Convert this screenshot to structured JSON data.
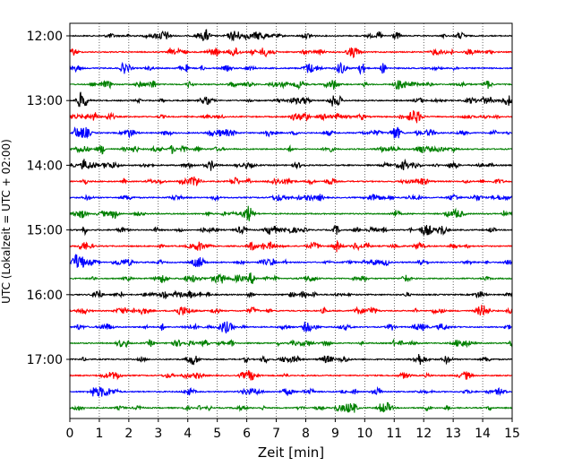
{
  "chart_data": {
    "type": "line",
    "title": "",
    "xlabel": "Zeit  [min]",
    "ylabel": "UTC (Lokalzeit = UTC + 02:00)",
    "xlim": [
      0,
      15
    ],
    "x_ticks": [
      "0",
      "1",
      "2",
      "3",
      "4",
      "5",
      "6",
      "7",
      "8",
      "9",
      "10",
      "11",
      "12",
      "13",
      "14",
      "15"
    ],
    "y_tick_labels": [
      "12:00",
      "13:00",
      "14:00",
      "15:00",
      "16:00",
      "17:00"
    ],
    "grid": "vertical dotted",
    "trace_interval_minutes": 15,
    "start_time": "12:00",
    "traces": [
      {
        "start": "12:00",
        "color": "#000000"
      },
      {
        "start": "12:15",
        "color": "#ff0000"
      },
      {
        "start": "12:30",
        "color": "#0000ff"
      },
      {
        "start": "12:45",
        "color": "#008000"
      },
      {
        "start": "13:00",
        "color": "#000000"
      },
      {
        "start": "13:15",
        "color": "#ff0000"
      },
      {
        "start": "13:30",
        "color": "#0000ff"
      },
      {
        "start": "13:45",
        "color": "#008000"
      },
      {
        "start": "14:00",
        "color": "#000000"
      },
      {
        "start": "14:15",
        "color": "#ff0000"
      },
      {
        "start": "14:30",
        "color": "#0000ff"
      },
      {
        "start": "14:45",
        "color": "#008000"
      },
      {
        "start": "15:00",
        "color": "#000000"
      },
      {
        "start": "15:15",
        "color": "#ff0000"
      },
      {
        "start": "15:30",
        "color": "#0000ff"
      },
      {
        "start": "15:45",
        "color": "#008000"
      },
      {
        "start": "16:00",
        "color": "#000000"
      },
      {
        "start": "16:15",
        "color": "#ff0000"
      },
      {
        "start": "16:30",
        "color": "#0000ff"
      },
      {
        "start": "16:45",
        "color": "#008000"
      },
      {
        "start": "17:00",
        "color": "#000000"
      },
      {
        "start": "17:15",
        "color": "#ff0000"
      },
      {
        "start": "17:30",
        "color": "#0000ff"
      },
      {
        "start": "17:45",
        "color": "#008000"
      }
    ]
  }
}
